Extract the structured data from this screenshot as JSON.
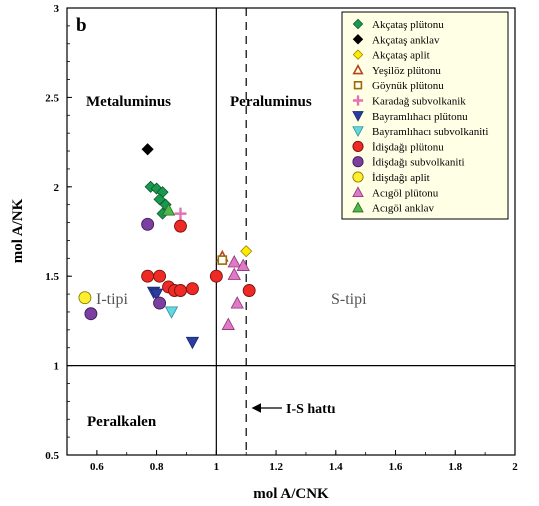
{
  "chart_data": {
    "type": "scatter",
    "panel_label": "b",
    "xlabel": "mol A/CNK",
    "ylabel": "mol A/NK",
    "xlim": [
      0.5,
      2
    ],
    "ylim": [
      0.5,
      3
    ],
    "x_ticks": [
      "0.6",
      "0.8",
      "1",
      "1.2",
      "1.4",
      "1.6",
      "1.8",
      "2"
    ],
    "y_ticks": [
      "0.5",
      "1",
      "1.5",
      "2",
      "2.5",
      "3"
    ],
    "grid": false,
    "legend_position": "top-right",
    "regions": {
      "metaluminus": "Metaluminus",
      "peraluminus": "Peraluminus",
      "peralkalen": "Peralkalen",
      "i_tipi": "I-tipi",
      "s_tipi": "S-tipi"
    },
    "annotation": "I-S hattı",
    "reference_lines": [
      {
        "orientation": "vertical",
        "x": 1,
        "style": "solid"
      },
      {
        "orientation": "horizontal",
        "y": 1,
        "style": "solid"
      },
      {
        "orientation": "vertical",
        "x": 1.1,
        "style": "dashed"
      }
    ],
    "series": [
      {
        "name": "Akçataş plütonu",
        "marker": "diamond",
        "fill": "#1a9850",
        "stroke": "#0b5d2a",
        "points": [
          [
            0.78,
            2.0
          ],
          [
            0.8,
            1.99
          ],
          [
            0.82,
            1.97
          ],
          [
            0.81,
            1.93
          ],
          [
            0.83,
            1.9
          ],
          [
            0.82,
            1.85
          ]
        ]
      },
      {
        "name": "Akçataş anklav",
        "marker": "diamond",
        "fill": "#000000",
        "stroke": "#000000",
        "points": [
          [
            0.77,
            2.21
          ]
        ]
      },
      {
        "name": "Akçataş aplit",
        "marker": "diamond",
        "fill": "#ffea00",
        "stroke": "#9a8a00",
        "points": [
          [
            1.1,
            1.64
          ]
        ]
      },
      {
        "name": "Yeşilöz plütonu",
        "marker": "triangle-open",
        "fill": "none",
        "stroke": "#b5421a",
        "points": [
          [
            1.02,
            1.61
          ]
        ]
      },
      {
        "name": "Göynük plütonu",
        "marker": "square-open",
        "fill": "#ffffff",
        "stroke": "#9a6a00",
        "points": [
          [
            1.02,
            1.59
          ]
        ]
      },
      {
        "name": "Karadağ subvolkanik",
        "marker": "plus",
        "fill": "#e371b4",
        "stroke": "#e371b4",
        "points": [
          [
            0.88,
            1.85
          ]
        ]
      },
      {
        "name": "Bayramlıhacı plütonu",
        "marker": "triangle-down",
        "fill": "#2b3ea0",
        "stroke": "#1b2770",
        "points": [
          [
            0.79,
            1.41
          ],
          [
            0.8,
            1.4
          ],
          [
            0.92,
            1.13
          ]
        ]
      },
      {
        "name": "Bayramlıhacı subvolkaniti",
        "marker": "triangle-down",
        "fill": "#63d7e0",
        "stroke": "#2f8f98",
        "points": [
          [
            0.85,
            1.3
          ]
        ]
      },
      {
        "name": "İdişdağı plütonu",
        "marker": "circle",
        "fill": "#ee2a24",
        "stroke": "#7a1010",
        "points": [
          [
            0.88,
            1.78
          ],
          [
            0.77,
            1.5
          ],
          [
            0.81,
            1.5
          ],
          [
            0.84,
            1.44
          ],
          [
            0.86,
            1.42
          ],
          [
            0.88,
            1.42
          ],
          [
            0.92,
            1.43
          ],
          [
            1.0,
            1.5
          ],
          [
            1.11,
            1.42
          ]
        ]
      },
      {
        "name": "İdişdağı subvolkaniti",
        "marker": "circle",
        "fill": "#7b3fa0",
        "stroke": "#3f1a5c",
        "points": [
          [
            0.77,
            1.79
          ],
          [
            0.81,
            1.35
          ],
          [
            0.58,
            1.29
          ]
        ]
      },
      {
        "name": "İdişdağı aplit",
        "marker": "circle",
        "fill": "#ffef2e",
        "stroke": "#8a7a00",
        "points": [
          [
            0.56,
            1.38
          ]
        ]
      },
      {
        "name": "Acıgöl plütonu",
        "marker": "triangle",
        "fill": "#e078c8",
        "stroke": "#8a3478",
        "points": [
          [
            1.06,
            1.58
          ],
          [
            1.06,
            1.51
          ],
          [
            1.09,
            1.56
          ],
          [
            1.07,
            1.35
          ],
          [
            1.04,
            1.23
          ]
        ]
      },
      {
        "name": "Acıgöl anklav",
        "marker": "triangle",
        "fill": "#4fb848",
        "stroke": "#2a6a24",
        "points": [
          [
            0.84,
            1.87
          ]
        ]
      }
    ]
  }
}
